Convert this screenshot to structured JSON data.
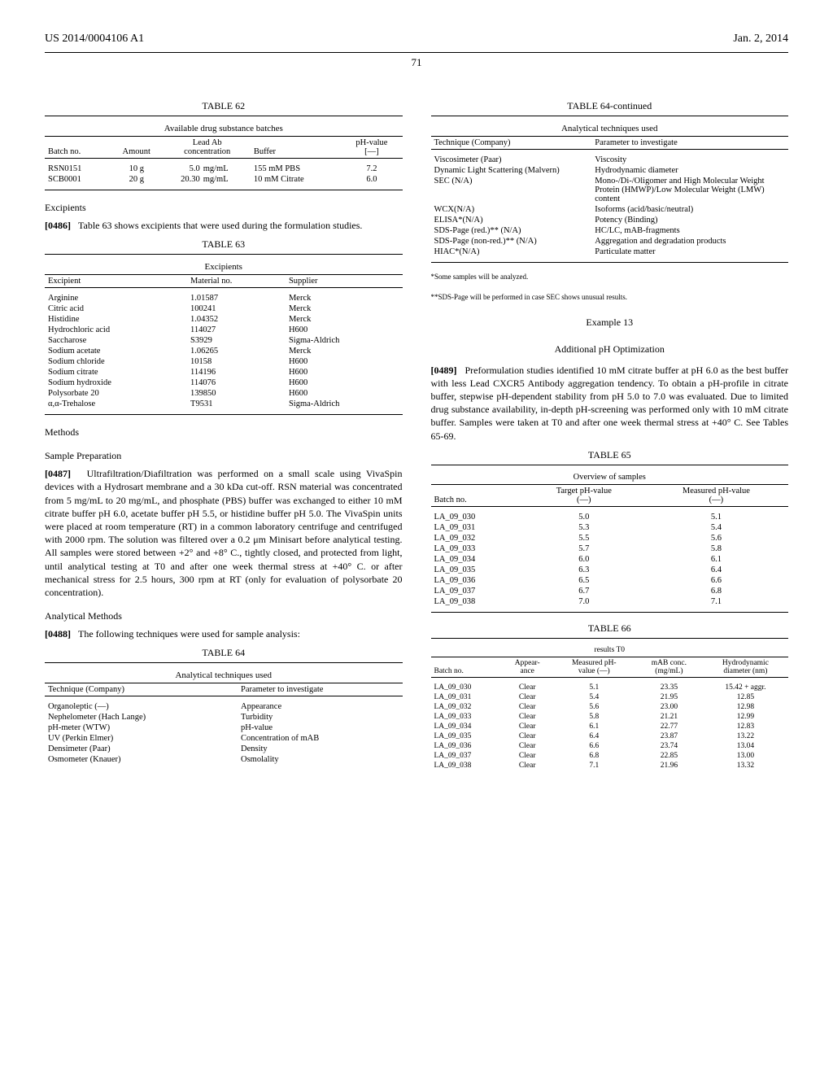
{
  "header": {
    "left": "US 2014/0004106 A1",
    "right": "Jan. 2, 2014",
    "page": "71"
  },
  "left": {
    "t62": {
      "caption": "TABLE 62",
      "title": "Available drug substance batches",
      "headers": [
        "Batch no.",
        "Amount",
        "Lead Ab\nconcentration",
        "Buffer",
        "pH-value\n[—]"
      ],
      "rows": [
        [
          "RSN0151",
          "10 g",
          "5.0  mg/mL",
          "155  mM PBS",
          "7.2"
        ],
        [
          "SCB0001",
          "20 g",
          "20.30  mg/mL",
          "10  mM Citrate",
          "6.0"
        ]
      ]
    },
    "excipients_h": "Excipients",
    "p0486": "Table 63 shows excipients that were used during the formulation studies.",
    "t63": {
      "caption": "TABLE 63",
      "title": "Excipients",
      "headers": [
        "Excipient",
        "Material no.",
        "Supplier"
      ],
      "rows": [
        [
          "Arginine",
          "1.01587",
          "Merck"
        ],
        [
          "Citric acid",
          "100241",
          "Merck"
        ],
        [
          "Histidine",
          "1.04352",
          "Merck"
        ],
        [
          "Hydrochloric acid",
          "114027",
          "H600"
        ],
        [
          "Saccharose",
          "S3929",
          "Sigma-Aldrich"
        ],
        [
          "Sodium acetate",
          "1.06265",
          "Merck"
        ],
        [
          "Sodium chloride",
          "10158",
          "H600"
        ],
        [
          "Sodium citrate",
          "114196",
          "H600"
        ],
        [
          "Sodium hydroxide",
          "114076",
          "H600"
        ],
        [
          "Polysorbate 20",
          "139850",
          "H600"
        ],
        [
          "α,α-Trehalose",
          "T9531",
          "Sigma-Aldrich"
        ]
      ]
    },
    "methods_h": "Methods",
    "sample_h": "Sample Preparation",
    "p0487": "Ultrafiltration/Diafiltration was performed on a small scale using VivaSpin devices with a Hydrosart membrane and a 30 kDa cut-off. RSN material was concentrated from 5 mg/mL to 20 mg/mL, and phosphate (PBS) buffer was exchanged to either 10 mM citrate buffer pH 6.0, acetate buffer pH 5.5, or histidine buffer pH 5.0. The VivaSpin units were placed at room temperature (RT) in a common laboratory centrifuge and centrifuged with 2000 rpm. The solution was filtered over a 0.2 μm Minisart before analytical testing. All samples were stored between +2° and +8° C., tightly closed, and protected from light, until analytical testing at T0 and after one week thermal stress at +40° C. or after mechanical stress for 2.5 hours, 300 rpm at RT (only for evaluation of polysorbate 20 concentration).",
    "analytical_h": "Analytical Methods",
    "p0488": "The following techniques were used for sample analysis:",
    "t64": {
      "caption": "TABLE 64",
      "title": "Analytical techniques used",
      "headers": [
        "Technique (Company)",
        "Parameter to investigate"
      ],
      "rows": [
        [
          "Organoleptic (—)",
          "Appearance"
        ],
        [
          "Nephelometer (Hach Lange)",
          "Turbidity"
        ],
        [
          "pH-meter (WTW)",
          "pH-value"
        ],
        [
          "UV (Perkin Elmer)",
          "Concentration of mAB"
        ],
        [
          "Densimeter (Paar)",
          "Density"
        ],
        [
          "Osmometer (Knauer)",
          "Osmolality"
        ]
      ]
    }
  },
  "right": {
    "t64c": {
      "caption": "TABLE 64-continued",
      "title": "Analytical techniques used",
      "headers": [
        "Technique (Company)",
        "Parameter to investigate"
      ],
      "rows": [
        [
          "Viscosimeter (Paar)",
          "Viscosity"
        ],
        [
          "Dynamic Light Scattering (Malvern)",
          "Hydrodynamic diameter"
        ],
        [
          "SEC (N/A)",
          "Mono-/Di-/Oligomer and High Molecular Weight Protein (HMWP)/Low Molecular Weight (LMW) content"
        ],
        [
          "WCX(N/A)",
          "Isoforms (acid/basic/neutral)"
        ],
        [
          "ELISA*(N/A)",
          "Potency (Binding)"
        ],
        [
          "SDS-Page (red.)** (N/A)",
          "HC/LC, mAB-fragments"
        ],
        [
          "SDS-Page (non-red.)** (N/A)",
          "Aggregation and degradation products"
        ],
        [
          "HIAC*(N/A)",
          "Particulate matter"
        ]
      ]
    },
    "fn1": "*Some samples will be analyzed.",
    "fn2": "**SDS-Page will be performed in case SEC shows unusual results.",
    "ex13": "Example 13",
    "ex13_sub": "Additional pH Optimization",
    "p0489": "Preformulation studies identified 10 mM citrate buffer at pH 6.0 as the best buffer with less Lead CXCR5 Antibody aggregation tendency. To obtain a pH-profile in citrate buffer, stepwise pH-dependent stability from pH 5.0 to 7.0 was evaluated. Due to limited drug substance availability, in-depth pH-screening was performed only with 10 mM citrate buffer. Samples were taken at T0 and after one week thermal stress at +40° C. See Tables 65-69.",
    "t65": {
      "caption": "TABLE 65",
      "title": "Overview of samples",
      "headers": [
        "Batch no.",
        "Target pH-value\n(—)",
        "Measured pH-value\n(—)"
      ],
      "rows": [
        [
          "LA_09_030",
          "5.0",
          "5.1"
        ],
        [
          "LA_09_031",
          "5.3",
          "5.4"
        ],
        [
          "LA_09_032",
          "5.5",
          "5.6"
        ],
        [
          "LA_09_033",
          "5.7",
          "5.8"
        ],
        [
          "LA_09_034",
          "6.0",
          "6.1"
        ],
        [
          "LA_09_035",
          "6.3",
          "6.4"
        ],
        [
          "LA_09_036",
          "6.5",
          "6.6"
        ],
        [
          "LA_09_037",
          "6.7",
          "6.8"
        ],
        [
          "LA_09_038",
          "7.0",
          "7.1"
        ]
      ]
    },
    "t66": {
      "caption": "TABLE 66",
      "title": "results T0",
      "headers": [
        "Batch no.",
        "Appear-\nance",
        "Measured pH-\nvalue (—)",
        "mAB conc.\n(mg/mL)",
        "Hydrodynamic\ndiameter (nm)"
      ],
      "rows": [
        [
          "LA_09_030",
          "Clear",
          "5.1",
          "23.35",
          "15.42 + aggr."
        ],
        [
          "LA_09_031",
          "Clear",
          "5.4",
          "21.95",
          "12.85"
        ],
        [
          "LA_09_032",
          "Clear",
          "5.6",
          "23.00",
          "12.98"
        ],
        [
          "LA_09_033",
          "Clear",
          "5.8",
          "21.21",
          "12.99"
        ],
        [
          "LA_09_034",
          "Clear",
          "6.1",
          "22.77",
          "12.83"
        ],
        [
          "LA_09_035",
          "Clear",
          "6.4",
          "23.87",
          "13.22"
        ],
        [
          "LA_09_036",
          "Clear",
          "6.6",
          "23.74",
          "13.04"
        ],
        [
          "LA_09_037",
          "Clear",
          "6.8",
          "22.85",
          "13.00"
        ],
        [
          "LA_09_038",
          "Clear",
          "7.1",
          "21.96",
          "13.32"
        ]
      ]
    }
  }
}
